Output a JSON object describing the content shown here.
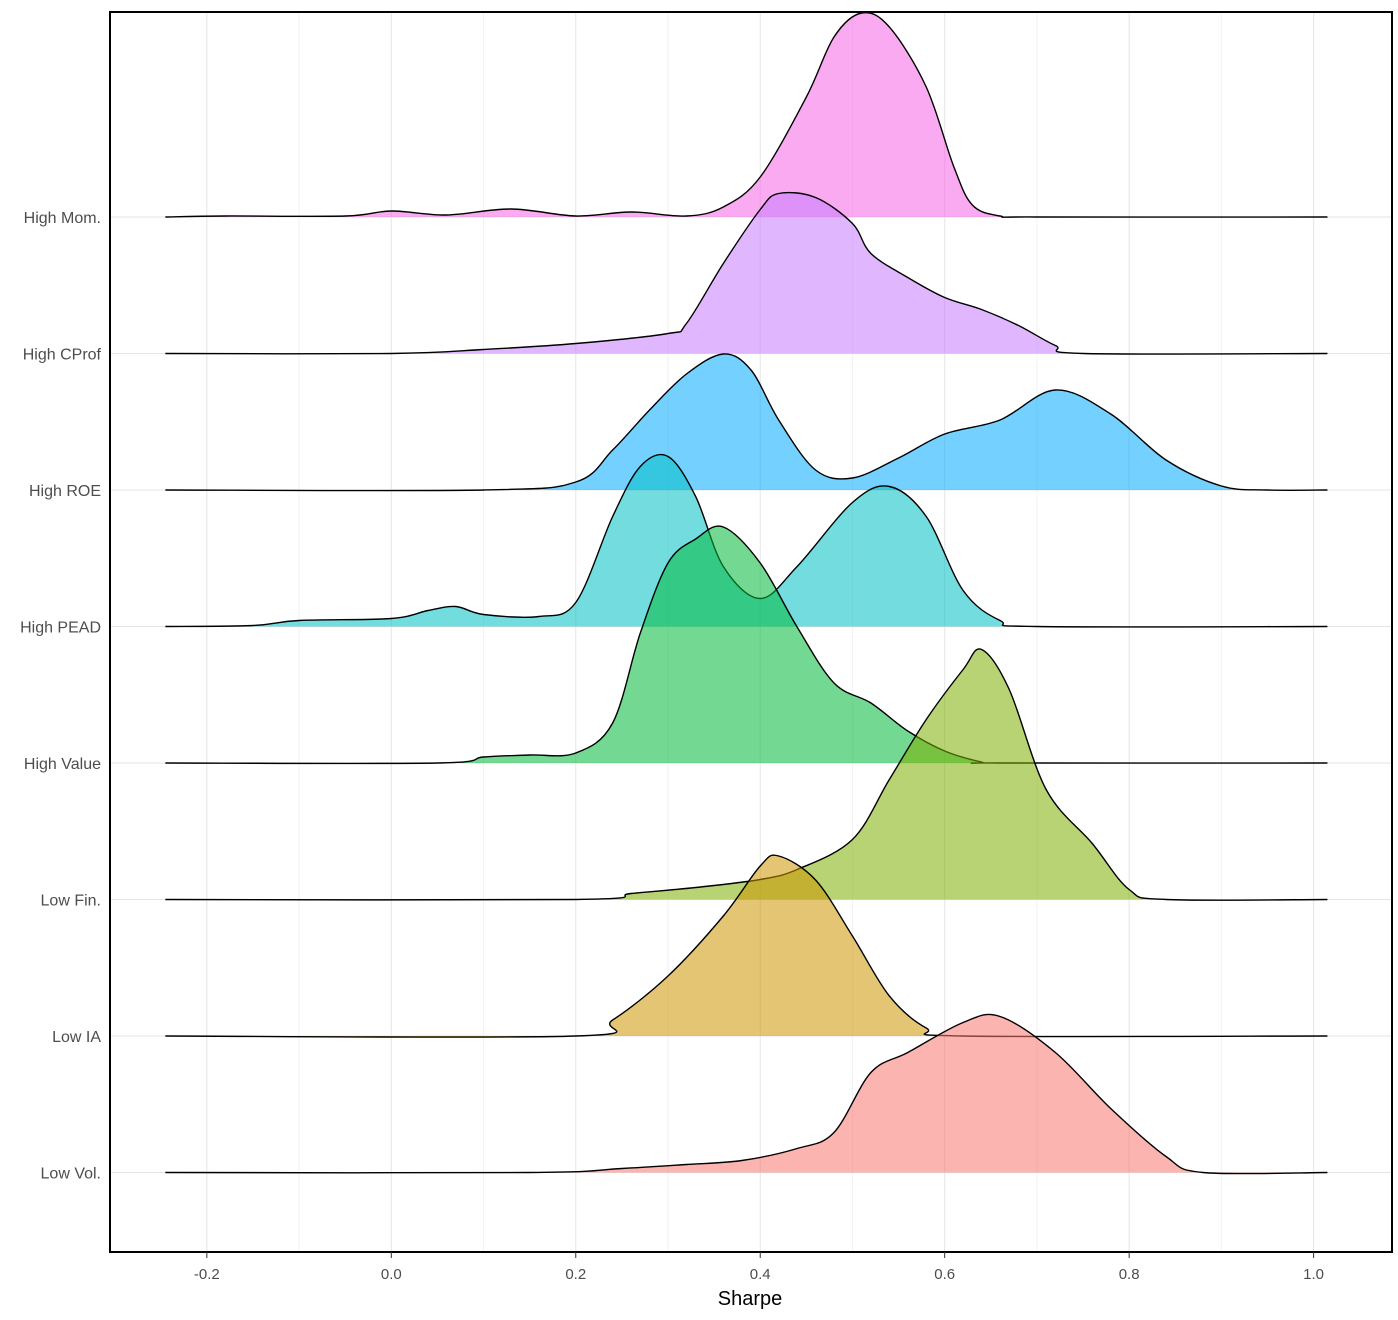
{
  "chart_data": {
    "type": "ridgeline",
    "title": "",
    "xlabel": "Sharpe",
    "ylabel": "",
    "xlim": [
      -0.305,
      1.085
    ],
    "x_ticks": [
      "-0.2",
      "0.0",
      "0.2",
      "0.4",
      "0.6",
      "0.8",
      "1.0"
    ],
    "x_tick_values": [
      -0.2,
      0.0,
      0.2,
      0.4,
      0.6,
      0.8,
      1.0
    ],
    "x_range": [
      -0.245,
      1.015
    ],
    "grid": true,
    "legend": "none",
    "fill_opacity": 0.55,
    "series": [
      {
        "name": "High Mom.",
        "color": "#F564E3",
        "points": [
          [
            -0.245,
            0
          ],
          [
            -0.18,
            0.005
          ],
          [
            -0.05,
            0.005
          ],
          [
            0.0,
            0.03
          ],
          [
            0.06,
            0.01
          ],
          [
            0.13,
            0.04
          ],
          [
            0.2,
            0.005
          ],
          [
            0.26,
            0.025
          ],
          [
            0.32,
            0.005
          ],
          [
            0.36,
            0.05
          ],
          [
            0.4,
            0.2
          ],
          [
            0.45,
            0.6
          ],
          [
            0.48,
            0.9
          ],
          [
            0.51,
            1.02
          ],
          [
            0.54,
            0.95
          ],
          [
            0.58,
            0.65
          ],
          [
            0.61,
            0.25
          ],
          [
            0.63,
            0.06
          ],
          [
            0.66,
            0.005
          ],
          [
            0.7,
            0
          ],
          [
            1.015,
            0
          ]
        ]
      },
      {
        "name": "High CProf",
        "color": "#C77CFF",
        "points": [
          [
            -0.245,
            0
          ],
          [
            0.0,
            0
          ],
          [
            0.1,
            0.02
          ],
          [
            0.2,
            0.05
          ],
          [
            0.3,
            0.1
          ],
          [
            0.32,
            0.15
          ],
          [
            0.36,
            0.45
          ],
          [
            0.4,
            0.72
          ],
          [
            0.42,
            0.8
          ],
          [
            0.46,
            0.78
          ],
          [
            0.5,
            0.65
          ],
          [
            0.52,
            0.5
          ],
          [
            0.56,
            0.38
          ],
          [
            0.6,
            0.28
          ],
          [
            0.64,
            0.22
          ],
          [
            0.68,
            0.14
          ],
          [
            0.72,
            0.04
          ],
          [
            0.75,
            0
          ],
          [
            1.015,
            0
          ]
        ]
      },
      {
        "name": "High ROE",
        "color": "#00A9FF",
        "points": [
          [
            -0.245,
            0
          ],
          [
            0.1,
            0
          ],
          [
            0.2,
            0.04
          ],
          [
            0.24,
            0.2
          ],
          [
            0.28,
            0.4
          ],
          [
            0.32,
            0.58
          ],
          [
            0.36,
            0.68
          ],
          [
            0.39,
            0.6
          ],
          [
            0.42,
            0.35
          ],
          [
            0.46,
            0.1
          ],
          [
            0.5,
            0.06
          ],
          [
            0.55,
            0.16
          ],
          [
            0.6,
            0.28
          ],
          [
            0.66,
            0.35
          ],
          [
            0.72,
            0.5
          ],
          [
            0.78,
            0.38
          ],
          [
            0.84,
            0.15
          ],
          [
            0.9,
            0.02
          ],
          [
            0.95,
            0
          ],
          [
            1.015,
            0
          ]
        ]
      },
      {
        "name": "High PEAD",
        "color": "#00BFC4",
        "points": [
          [
            -0.245,
            0
          ],
          [
            -0.15,
            0.005
          ],
          [
            -0.1,
            0.03
          ],
          [
            0.0,
            0.04
          ],
          [
            0.04,
            0.08
          ],
          [
            0.07,
            0.1
          ],
          [
            0.1,
            0.06
          ],
          [
            0.16,
            0.05
          ],
          [
            0.2,
            0.12
          ],
          [
            0.24,
            0.55
          ],
          [
            0.27,
            0.8
          ],
          [
            0.3,
            0.85
          ],
          [
            0.33,
            0.65
          ],
          [
            0.36,
            0.3
          ],
          [
            0.4,
            0.14
          ],
          [
            0.44,
            0.3
          ],
          [
            0.5,
            0.62
          ],
          [
            0.54,
            0.7
          ],
          [
            0.58,
            0.55
          ],
          [
            0.62,
            0.18
          ],
          [
            0.66,
            0.03
          ],
          [
            0.7,
            0
          ],
          [
            1.015,
            0
          ]
        ]
      },
      {
        "name": "High Value",
        "color": "#00BA38",
        "points": [
          [
            -0.245,
            0
          ],
          [
            0.05,
            0
          ],
          [
            0.1,
            0.03
          ],
          [
            0.15,
            0.04
          ],
          [
            0.2,
            0.05
          ],
          [
            0.24,
            0.2
          ],
          [
            0.27,
            0.65
          ],
          [
            0.3,
            1.0
          ],
          [
            0.33,
            1.12
          ],
          [
            0.36,
            1.18
          ],
          [
            0.4,
            1.0
          ],
          [
            0.44,
            0.68
          ],
          [
            0.48,
            0.4
          ],
          [
            0.52,
            0.3
          ],
          [
            0.56,
            0.16
          ],
          [
            0.6,
            0.06
          ],
          [
            0.64,
            0.005
          ],
          [
            0.66,
            0
          ],
          [
            1.015,
            0
          ]
        ]
      },
      {
        "name": "Low Fin.",
        "color": "#7CAE00",
        "points": [
          [
            -0.245,
            0
          ],
          [
            0.2,
            0
          ],
          [
            0.26,
            0.03
          ],
          [
            0.33,
            0.06
          ],
          [
            0.4,
            0.1
          ],
          [
            0.44,
            0.15
          ],
          [
            0.5,
            0.3
          ],
          [
            0.54,
            0.6
          ],
          [
            0.58,
            0.9
          ],
          [
            0.62,
            1.15
          ],
          [
            0.64,
            1.25
          ],
          [
            0.67,
            1.05
          ],
          [
            0.71,
            0.55
          ],
          [
            0.76,
            0.28
          ],
          [
            0.8,
            0.05
          ],
          [
            0.84,
            0
          ],
          [
            1.015,
            0
          ]
        ]
      },
      {
        "name": "Low IA",
        "color": "#CD9600",
        "points": [
          [
            -0.245,
            0
          ],
          [
            0.2,
            0
          ],
          [
            0.24,
            0.08
          ],
          [
            0.3,
            0.3
          ],
          [
            0.36,
            0.6
          ],
          [
            0.4,
            0.85
          ],
          [
            0.42,
            0.9
          ],
          [
            0.46,
            0.78
          ],
          [
            0.5,
            0.5
          ],
          [
            0.54,
            0.2
          ],
          [
            0.58,
            0.04
          ],
          [
            0.62,
            0
          ],
          [
            1.015,
            0
          ]
        ]
      },
      {
        "name": "Low Vol.",
        "color": "#F8766D",
        "points": [
          [
            -0.245,
            0
          ],
          [
            0.15,
            0
          ],
          [
            0.25,
            0.02
          ],
          [
            0.32,
            0.04
          ],
          [
            0.38,
            0.06
          ],
          [
            0.44,
            0.12
          ],
          [
            0.48,
            0.2
          ],
          [
            0.52,
            0.5
          ],
          [
            0.56,
            0.6
          ],
          [
            0.62,
            0.75
          ],
          [
            0.66,
            0.78
          ],
          [
            0.72,
            0.6
          ],
          [
            0.78,
            0.32
          ],
          [
            0.84,
            0.08
          ],
          [
            0.88,
            0
          ],
          [
            1.015,
            0
          ]
        ]
      }
    ]
  }
}
